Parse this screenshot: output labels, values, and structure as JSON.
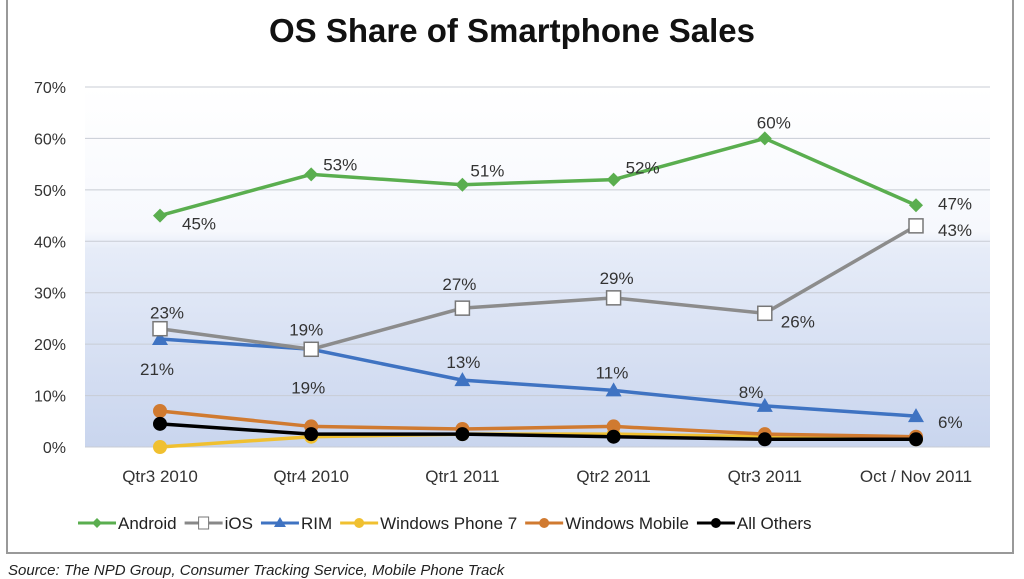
{
  "chart_data": {
    "type": "line",
    "title": "OS Share of Smartphone Sales",
    "categories": [
      "Qtr3 2010",
      "Qtr4 2010",
      "Qtr1 2011",
      "Qtr2 2011",
      "Qtr3 2011",
      "Oct / Nov 2011"
    ],
    "ylim": [
      0,
      70
    ],
    "yticks": [
      "0%",
      "10%",
      "20%",
      "30%",
      "40%",
      "50%",
      "60%",
      "70%"
    ],
    "grid": true,
    "legend": "bottom",
    "series": [
      {
        "name": "Android",
        "color": "#5aae4f",
        "marker": "diamond",
        "values": [
          45,
          53,
          51,
          52,
          60,
          47
        ],
        "labels": [
          "45%",
          "53%",
          "51%",
          "52%",
          "60%",
          "47%"
        ]
      },
      {
        "name": "iOS",
        "color": "#8c8c8c",
        "marker": "square-open",
        "values": [
          23,
          19,
          27,
          29,
          26,
          43
        ],
        "labels": [
          "23%",
          "19%",
          "27%",
          "29%",
          "26%",
          "43%"
        ]
      },
      {
        "name": "RIM",
        "color": "#3f73c2",
        "marker": "triangle",
        "values": [
          21,
          19,
          13,
          11,
          8,
          6
        ],
        "labels": [
          "21%",
          "19%",
          "13%",
          "11%",
          "8%",
          "6%"
        ]
      },
      {
        "name": "Windows Phone 7",
        "color": "#f0c030",
        "marker": "circle",
        "values": [
          0,
          2,
          2.5,
          2.5,
          2,
          1.5
        ]
      },
      {
        "name": "Windows Mobile",
        "color": "#d07a30",
        "marker": "circle",
        "values": [
          7,
          4,
          3.5,
          4,
          2.5,
          2
        ]
      },
      {
        "name": "All Others",
        "color": "#000000",
        "marker": "circle",
        "values": [
          4.5,
          2.5,
          2.5,
          2,
          1.5,
          1.5
        ]
      }
    ]
  },
  "source": "Source: The NPD Group, Consumer Tracking Service, Mobile Phone Track"
}
